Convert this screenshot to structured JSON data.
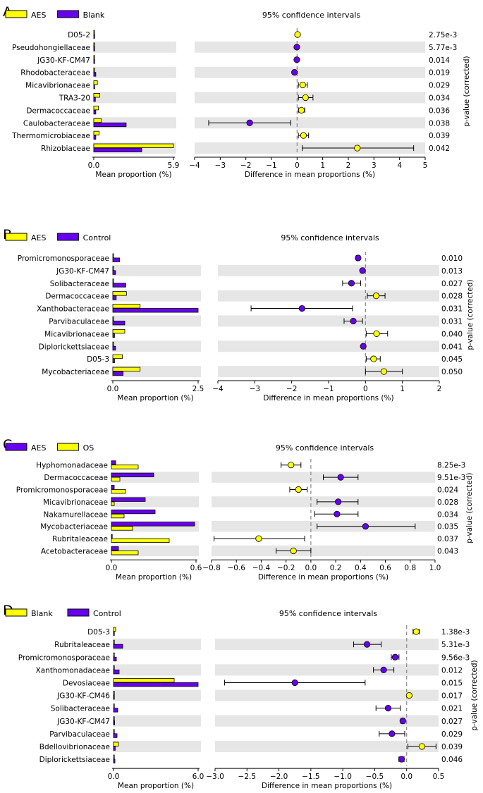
{
  "colors": {
    "yellow": "#ffff00",
    "purple": "#6600ee",
    "band": "#e6e6e6",
    "dash": "#888888"
  },
  "common": {
    "ci_title": "95% confidence intervals",
    "mean_xlabel": "Mean proportion (%)",
    "diff_xlabel": "Difference in mean proportions (%)",
    "pvalue_label": "p-value (corrected)"
  },
  "chart_data": [
    {
      "type": "bar",
      "panel_label": "A",
      "legend": [
        {
          "name": "AES",
          "color": "yellow"
        },
        {
          "name": "Blank",
          "color": "purple"
        }
      ],
      "categories": [
        "D05-2",
        "Pseudohongiellaceae",
        "JG30-KF-CM47",
        "Rhodobacteraceae",
        "Micavibrionaceae",
        "TRA3-20",
        "Dermacoccaceae",
        "Caulobacteraceae",
        "Thermomicrobiaceae",
        "Rhizobiaceae"
      ],
      "series": [
        {
          "name": "AES",
          "values": [
            0.02,
            0.02,
            0.02,
            0.05,
            0.27,
            0.45,
            0.35,
            0.55,
            0.4,
            5.9
          ]
        },
        {
          "name": "Blank",
          "values": [
            0.02,
            0.02,
            0.03,
            0.15,
            0.05,
            0.12,
            0.15,
            2.4,
            0.15,
            3.55
          ]
        }
      ],
      "mean_xlim": [
        0,
        5.9
      ],
      "mean_ticks": [
        "0.0",
        "5.9"
      ],
      "diff_xlim": [
        -4,
        5
      ],
      "diff_ticks": [
        "−4",
        "−3",
        "−2",
        "−1",
        "0",
        "1",
        "2",
        "3",
        "4",
        "5"
      ],
      "differences": [
        {
          "value": 0.02,
          "ci": [
            0.01,
            0.03
          ],
          "color": "yellow"
        },
        {
          "value": -0.01,
          "ci": [
            -0.02,
            0.0
          ],
          "color": "purple"
        },
        {
          "value": -0.01,
          "ci": [
            -0.02,
            0.0
          ],
          "color": "purple"
        },
        {
          "value": -0.1,
          "ci": [
            -0.15,
            -0.05
          ],
          "color": "purple"
        },
        {
          "value": 0.22,
          "ci": [
            0.05,
            0.4
          ],
          "color": "yellow"
        },
        {
          "value": 0.33,
          "ci": [
            0.05,
            0.62
          ],
          "color": "yellow"
        },
        {
          "value": 0.17,
          "ci": [
            0.05,
            0.3
          ],
          "color": "yellow"
        },
        {
          "value": -1.85,
          "ci": [
            -3.45,
            -0.25
          ],
          "color": "purple"
        },
        {
          "value": 0.25,
          "ci": [
            0.05,
            0.45
          ],
          "color": "yellow"
        },
        {
          "value": 2.35,
          "ci": [
            0.2,
            4.55
          ],
          "color": "yellow"
        }
      ],
      "p_values": [
        "2.75e-3",
        "5.77e-3",
        "0.014",
        "0.019",
        "0.029",
        "0.034",
        "0.036",
        "0.038",
        "0.039",
        "0.042"
      ]
    },
    {
      "type": "bar",
      "panel_label": "B",
      "legend": [
        {
          "name": "AES",
          "color": "yellow"
        },
        {
          "name": "Control",
          "color": "purple"
        }
      ],
      "categories": [
        "Promicromonosporaceae",
        "JG30-KF-CM47",
        "Solibacteraceae",
        "Dermacoccaceae",
        "Xanthobacteraceae",
        "Parvibaculaceae",
        "Micavibrionaceae",
        "Diplorickettsiaceae",
        "D05-3",
        "Mycobacteriaceae"
      ],
      "series": [
        {
          "name": "AES",
          "values": [
            0.0,
            0.0,
            0.02,
            0.4,
            0.8,
            0.02,
            0.35,
            0.02,
            0.28,
            0.8
          ]
        },
        {
          "name": "Control",
          "values": [
            0.2,
            0.08,
            0.38,
            0.1,
            2.5,
            0.35,
            0.05,
            0.08,
            0.05,
            0.3
          ]
        }
      ],
      "mean_xlim": [
        0,
        2.5
      ],
      "mean_ticks": [
        "0.0",
        "2.5"
      ],
      "diff_xlim": [
        -4,
        2
      ],
      "diff_ticks": [
        "−4",
        "−3",
        "−2",
        "−1",
        "0",
        "1",
        "2"
      ],
      "differences": [
        {
          "value": -0.2,
          "ci": [
            -0.25,
            -0.15
          ],
          "color": "purple"
        },
        {
          "value": -0.08,
          "ci": [
            -0.12,
            -0.05
          ],
          "color": "purple"
        },
        {
          "value": -0.38,
          "ci": [
            -0.62,
            -0.13
          ],
          "color": "purple"
        },
        {
          "value": 0.29,
          "ci": [
            0.05,
            0.53
          ],
          "color": "yellow"
        },
        {
          "value": -1.72,
          "ci": [
            -3.1,
            -0.35
          ],
          "color": "purple"
        },
        {
          "value": -0.33,
          "ci": [
            -0.58,
            -0.08
          ],
          "color": "purple"
        },
        {
          "value": 0.3,
          "ci": [
            0.02,
            0.6
          ],
          "color": "yellow"
        },
        {
          "value": -0.06,
          "ci": [
            -0.1,
            -0.03
          ],
          "color": "purple"
        },
        {
          "value": 0.22,
          "ci": [
            0.02,
            0.4
          ],
          "color": "yellow"
        },
        {
          "value": 0.5,
          "ci": [
            0.0,
            1.0
          ],
          "color": "yellow"
        }
      ],
      "p_values": [
        "0.010",
        "0.013",
        "0.027",
        "0.028",
        "0.031",
        "0.031",
        "0.040",
        "0.041",
        "0.045",
        "0.050"
      ]
    },
    {
      "type": "bar",
      "panel_label": "C",
      "legend": [
        {
          "name": "AES",
          "color": "purple"
        },
        {
          "name": "OS",
          "color": "yellow"
        }
      ],
      "categories": [
        "Hyphomonadaceae",
        "Dermacoccaceae",
        "Promicromonosporaceae",
        "Micavibrionaceae",
        "Nakamurellaceae",
        "Mycobacteriaceae",
        "Rubritaleaceae",
        "Acetobacteraceae"
      ],
      "series": [
        {
          "name": "AES",
          "values": [
            0.03,
            0.3,
            0.02,
            0.24,
            0.31,
            0.59,
            0.0,
            0.05
          ]
        },
        {
          "name": "OS",
          "values": [
            0.19,
            0.06,
            0.1,
            0.02,
            0.09,
            0.15,
            0.41,
            0.19
          ]
        }
      ],
      "mean_xlim": [
        0,
        0.6
      ],
      "mean_ticks": [
        "0.0",
        "0.6"
      ],
      "diff_xlim": [
        -0.8,
        1.0
      ],
      "diff_ticks": [
        "−0.8",
        "−0.6",
        "−0.4",
        "−0.2",
        "0.0",
        "0.2",
        "0.4",
        "0.6",
        "0.8",
        "1.0"
      ],
      "differences": [
        {
          "value": -0.16,
          "ci": [
            -0.24,
            -0.08
          ],
          "color": "yellow"
        },
        {
          "value": 0.24,
          "ci": [
            0.1,
            0.38
          ],
          "color": "purple"
        },
        {
          "value": -0.1,
          "ci": [
            -0.17,
            -0.03
          ],
          "color": "yellow"
        },
        {
          "value": 0.22,
          "ci": [
            0.05,
            0.38
          ],
          "color": "purple"
        },
        {
          "value": 0.21,
          "ci": [
            0.03,
            0.38
          ],
          "color": "purple"
        },
        {
          "value": 0.44,
          "ci": [
            0.05,
            0.84
          ],
          "color": "purple"
        },
        {
          "value": -0.42,
          "ci": [
            -0.78,
            -0.05
          ],
          "color": "yellow"
        },
        {
          "value": -0.14,
          "ci": [
            -0.28,
            0.0
          ],
          "color": "yellow"
        }
      ],
      "p_values": [
        "8.25e-3",
        "9.51e-3",
        "0.024",
        "0.028",
        "0.034",
        "0.035",
        "0.037",
        "0.043"
      ]
    },
    {
      "type": "bar",
      "panel_label": "D",
      "legend": [
        {
          "name": "Blank",
          "color": "yellow"
        },
        {
          "name": "Control",
          "color": "purple"
        }
      ],
      "categories": [
        "D05-3",
        "Rubritaleaceae",
        "Promicromonosporaceae",
        "Xanthomonadaceae",
        "Devosiaceae",
        "JG30-KF-CM46",
        "Solibacteraceae",
        "JG30-KF-CM47",
        "Parvibaculaceae",
        "Bdellovibrionaceae",
        "Diplorickettsiaceae"
      ],
      "series": [
        {
          "name": "Blank",
          "values": [
            0.15,
            0.02,
            0.02,
            0.02,
            4.3,
            0.05,
            0.02,
            0.02,
            0.02,
            0.35,
            0.02
          ]
        },
        {
          "name": "Control",
          "values": [
            0.02,
            0.65,
            0.2,
            0.4,
            6.0,
            0.02,
            0.3,
            0.08,
            0.25,
            0.12,
            0.1
          ]
        }
      ],
      "mean_xlim": [
        0,
        6.0
      ],
      "mean_ticks": [
        "0.0",
        "6.0"
      ],
      "diff_xlim": [
        -3.0,
        0.5
      ],
      "diff_ticks": [
        "−3.0",
        "−2.5",
        "−2.0",
        "−1.5",
        "−1.0",
        "−0.5",
        "0.0",
        "0.5"
      ],
      "differences": [
        {
          "value": 0.15,
          "ci": [
            0.1,
            0.2
          ],
          "color": "yellow"
        },
        {
          "value": -0.62,
          "ci": [
            -0.83,
            -0.4
          ],
          "color": "purple"
        },
        {
          "value": -0.18,
          "ci": [
            -0.24,
            -0.12
          ],
          "color": "purple"
        },
        {
          "value": -0.36,
          "ci": [
            -0.52,
            -0.2
          ],
          "color": "purple"
        },
        {
          "value": -1.75,
          "ci": [
            -2.85,
            -0.65
          ],
          "color": "purple"
        },
        {
          "value": 0.04,
          "ci": [
            0.02,
            0.06
          ],
          "color": "yellow"
        },
        {
          "value": -0.29,
          "ci": [
            -0.48,
            -0.1
          ],
          "color": "purple"
        },
        {
          "value": -0.06,
          "ci": [
            -0.09,
            -0.03
          ],
          "color": "purple"
        },
        {
          "value": -0.23,
          "ci": [
            -0.43,
            -0.03
          ],
          "color": "purple"
        },
        {
          "value": 0.24,
          "ci": [
            0.02,
            0.46
          ],
          "color": "yellow"
        },
        {
          "value": -0.08,
          "ci": [
            -0.12,
            -0.04
          ],
          "color": "purple"
        }
      ],
      "p_values": [
        "1.38e-3",
        "5.31e-3",
        "9.56e-3",
        "0.012",
        "0.015",
        "0.017",
        "0.021",
        "0.027",
        "0.029",
        "0.039",
        "0.046"
      ]
    }
  ]
}
